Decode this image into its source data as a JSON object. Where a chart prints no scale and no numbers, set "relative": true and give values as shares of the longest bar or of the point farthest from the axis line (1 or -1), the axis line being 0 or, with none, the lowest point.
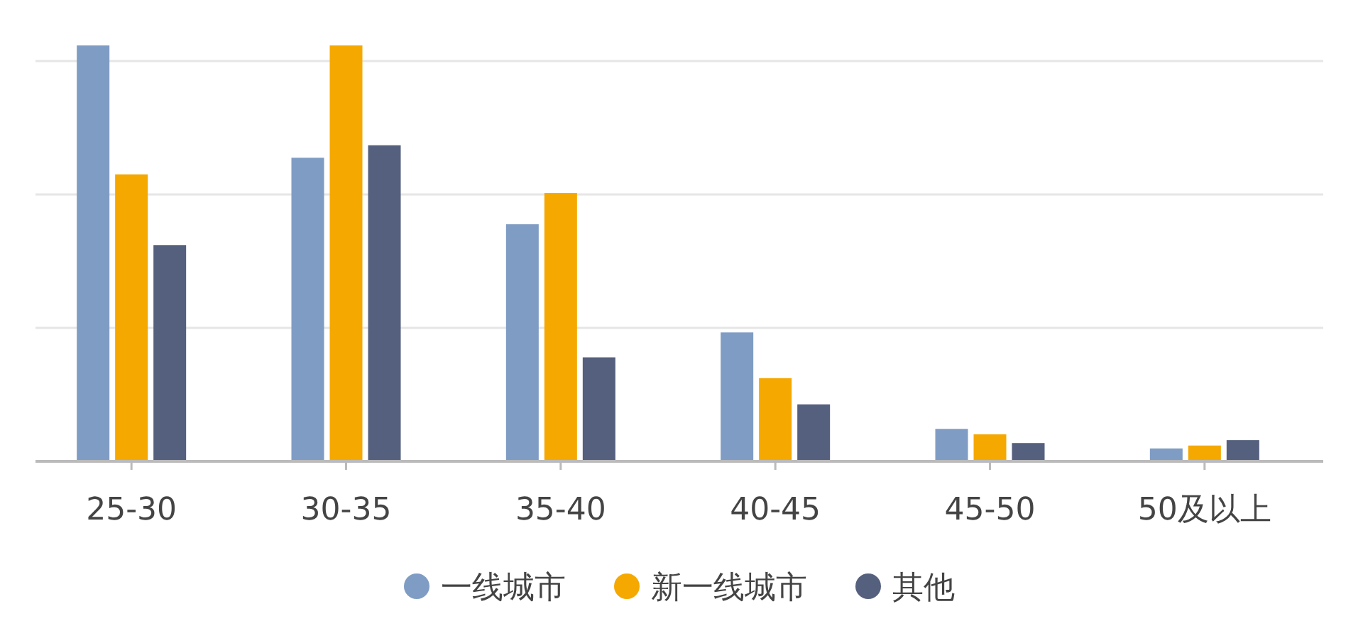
{
  "chart_data": {
    "type": "bar",
    "relative": true,
    "grid": "y",
    "legend": "bottom",
    "categories": [
      "25-30",
      "30-35",
      "35-40",
      "40-45",
      "45-50",
      "50及以上"
    ],
    "series": [
      {
        "name": "一线城市",
        "color": "#7f9cc4",
        "values": [
          1,
          0.73,
          0.57,
          0.31,
          0.078,
          0.031
        ]
      },
      {
        "name": "新一线城市",
        "color": "#f5a800",
        "values": [
          0.69,
          1,
          0.645,
          0.2,
          0.065,
          0.038
        ]
      },
      {
        "name": "其他",
        "color": "#55607e",
        "values": [
          0.52,
          0.76,
          0.25,
          0.137,
          0.044,
          0.051
        ]
      }
    ]
  }
}
